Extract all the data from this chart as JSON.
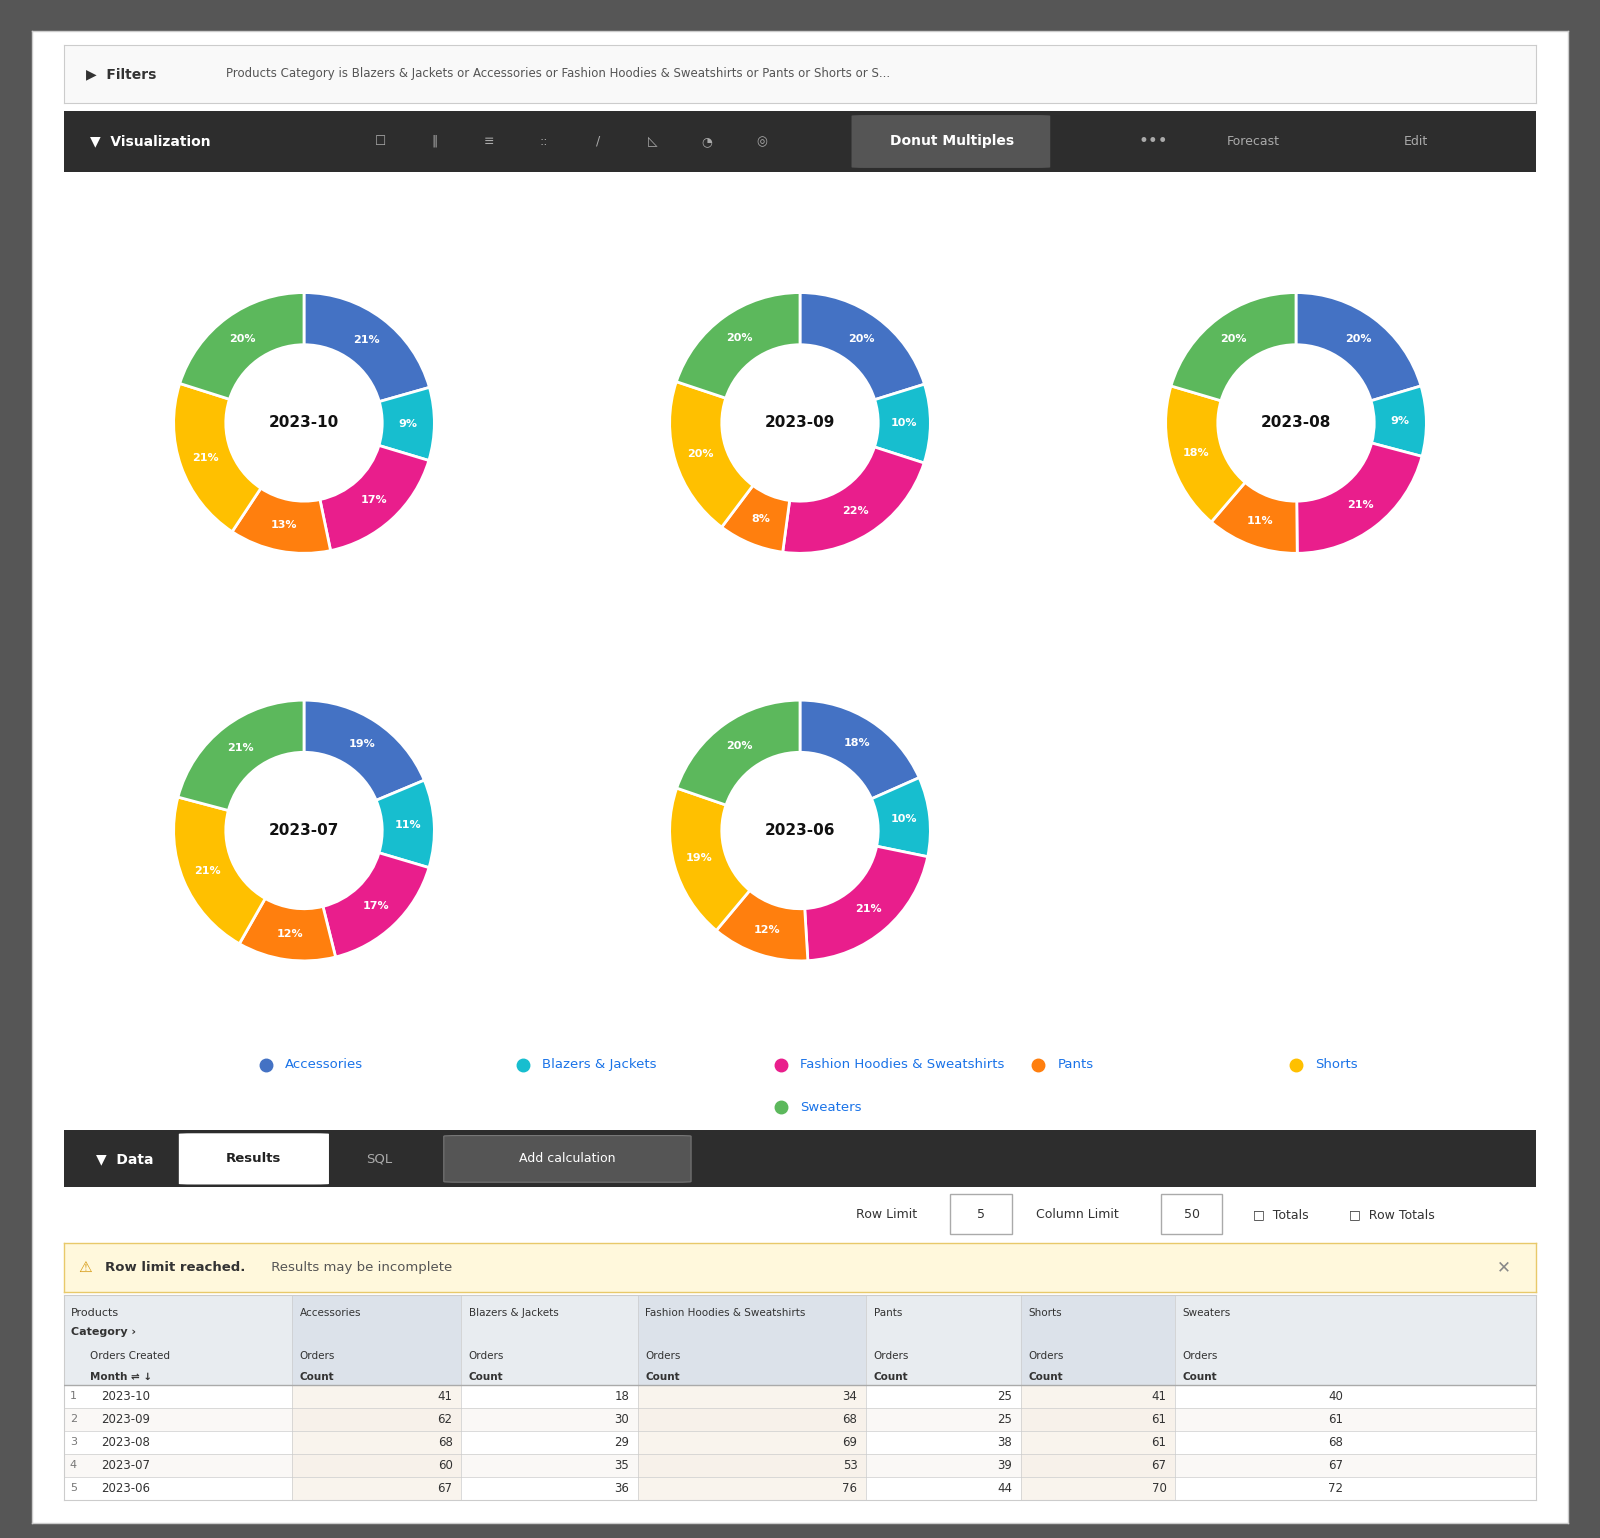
{
  "title": "Donut Multiples",
  "filter_text": "Products Category is Blazers & Jackets or Accessories or Fashion Hoodies & Sweatshirts or Pants or Shorts or S...",
  "donuts": [
    {
      "label": "2023-10",
      "values": [
        41,
        18,
        34,
        25,
        41,
        40
      ],
      "percentages": [
        21,
        9,
        17,
        13,
        21,
        20
      ]
    },
    {
      "label": "2023-09",
      "values": [
        62,
        30,
        68,
        25,
        61,
        61
      ],
      "percentages": [
        20,
        10,
        22,
        8,
        20,
        20
      ]
    },
    {
      "label": "2023-08",
      "values": [
        68,
        29,
        69,
        38,
        61,
        68
      ],
      "percentages": [
        20,
        9,
        21,
        11,
        18,
        20
      ]
    },
    {
      "label": "2023-07",
      "values": [
        60,
        35,
        53,
        39,
        67,
        67
      ],
      "percentages": [
        19,
        11,
        17,
        12,
        21,
        21
      ]
    },
    {
      "label": "2023-06",
      "values": [
        67,
        36,
        76,
        44,
        70,
        72
      ],
      "percentages": [
        18,
        10,
        21,
        12,
        19,
        20
      ]
    }
  ],
  "categories": [
    "Accessories",
    "Blazers & Jackets",
    "Fashion Hoodies & Sweatshirts",
    "Pants",
    "Shorts",
    "Sweaters"
  ],
  "colors": [
    "#4472C4",
    "#17BECF",
    "#E91E8C",
    "#FF7F0E",
    "#FFC000",
    "#5CB85C"
  ],
  "bg_color": "#565656",
  "panel_bg": "#ffffff",
  "toolbar_bg": "#2d2d2d",
  "data_bg": "#2d2d2d",
  "table": {
    "months": [
      "2023-10",
      "2023-09",
      "2023-08",
      "2023-07",
      "2023-06"
    ],
    "accessories": [
      41,
      62,
      68,
      60,
      67
    ],
    "blazers": [
      18,
      30,
      29,
      35,
      36
    ],
    "fashion": [
      34,
      68,
      69,
      53,
      76
    ],
    "pants": [
      25,
      25,
      38,
      39,
      44
    ],
    "shorts": [
      41,
      61,
      61,
      67,
      70
    ],
    "sweaters": [
      40,
      61,
      68,
      67,
      72
    ]
  }
}
